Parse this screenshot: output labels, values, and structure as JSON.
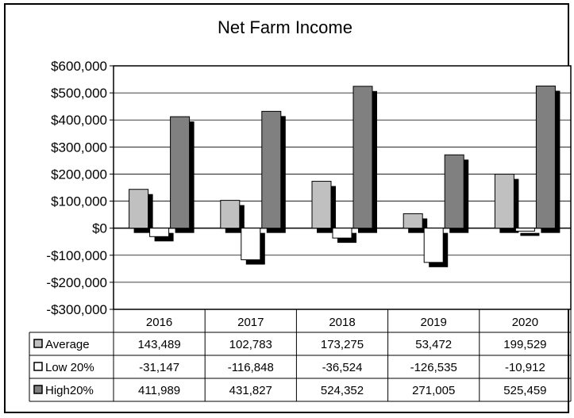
{
  "chart_data": {
    "type": "bar",
    "title": "Net Farm Income",
    "categories": [
      "2016",
      "2017",
      "2018",
      "2019",
      "2020"
    ],
    "ylim": [
      -300000,
      600000
    ],
    "yticks": [
      600000,
      500000,
      400000,
      300000,
      200000,
      100000,
      0,
      -100000,
      -200000,
      -300000
    ],
    "ytick_labels": [
      "$600,000",
      "$500,000",
      "$400,000",
      "$300,000",
      "$200,000",
      "$100,000",
      "$0",
      "-$100,000",
      "-$200,000",
      "-$300,000"
    ],
    "grid": true,
    "legend": "data-table",
    "series": [
      {
        "name": "Average",
        "values": [
          143489,
          102783,
          173275,
          53472,
          199529
        ],
        "labels": [
          "143,489",
          "102,783",
          "173,275",
          "53,472",
          "199,529"
        ],
        "color": "#c0c0c0"
      },
      {
        "name": "Low 20%",
        "values": [
          -31147,
          -116848,
          -36524,
          -126535,
          -10912
        ],
        "labels": [
          "-31,147",
          "-116,848",
          "-36,524",
          "-126,535",
          "-10,912"
        ],
        "color": "#ffffff"
      },
      {
        "name": "High20%",
        "values": [
          411989,
          431827,
          524352,
          271005,
          525459
        ],
        "labels": [
          "411,989",
          "431,827",
          "524,352",
          "271,005",
          "525,459"
        ],
        "color": "#808080"
      }
    ]
  }
}
